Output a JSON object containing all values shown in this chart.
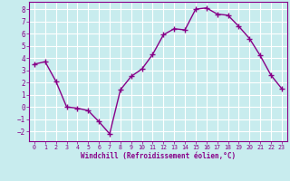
{
  "x": [
    0,
    1,
    2,
    3,
    4,
    5,
    6,
    7,
    8,
    9,
    10,
    11,
    12,
    13,
    14,
    15,
    16,
    17,
    18,
    19,
    20,
    21,
    22,
    23
  ],
  "y": [
    3.5,
    3.7,
    2.1,
    0.0,
    -0.1,
    -0.3,
    -1.2,
    -2.2,
    1.4,
    2.5,
    3.1,
    4.3,
    5.9,
    6.4,
    6.3,
    8.0,
    8.1,
    7.6,
    7.5,
    6.6,
    5.6,
    4.2,
    2.6,
    1.5
  ],
  "line_color": "#880088",
  "marker": "+",
  "marker_size": 4,
  "bg_color": "#c8ecee",
  "grid_color": "#ffffff",
  "xlabel": "Windchill (Refroidissement éolien,°C)",
  "xlabel_color": "#880088",
  "tick_color": "#880088",
  "spine_color": "#880088",
  "ylim": [
    -2.8,
    8.6
  ],
  "xlim": [
    -0.5,
    23.5
  ],
  "yticks": [
    -2,
    -1,
    0,
    1,
    2,
    3,
    4,
    5,
    6,
    7,
    8
  ],
  "xticks": [
    0,
    1,
    2,
    3,
    4,
    5,
    6,
    7,
    8,
    9,
    10,
    11,
    12,
    13,
    14,
    15,
    16,
    17,
    18,
    19,
    20,
    21,
    22,
    23
  ]
}
